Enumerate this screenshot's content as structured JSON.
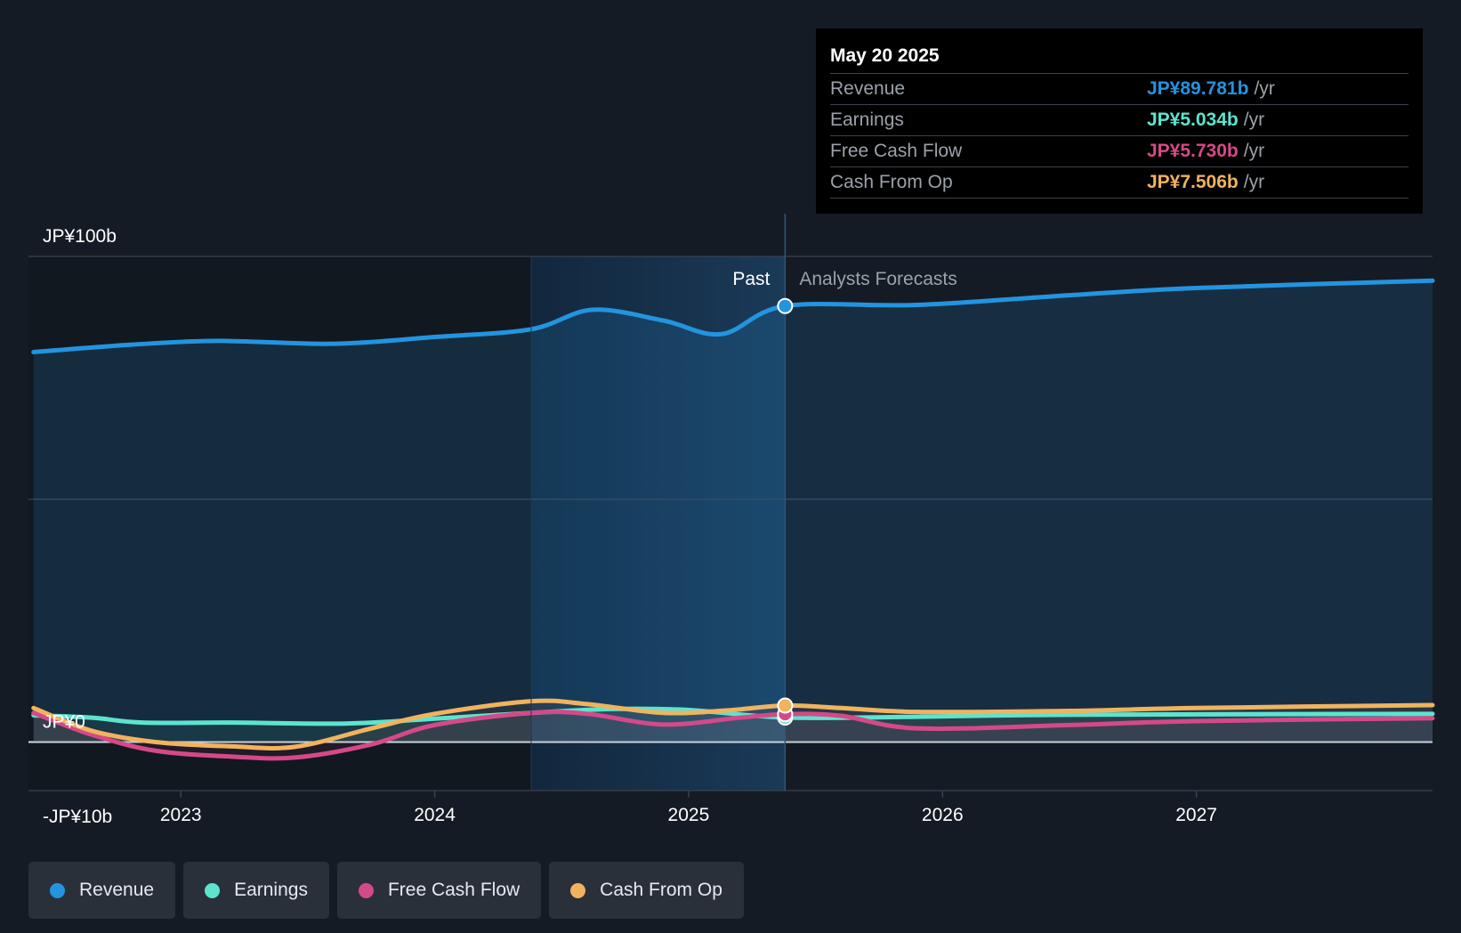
{
  "chart_data": {
    "type": "line",
    "x_label": "",
    "y_label": "",
    "ylim": [
      -10,
      100
    ],
    "y_ticks": [
      {
        "value": 100,
        "label": "JP¥100b"
      },
      {
        "value": 0,
        "label": "JP¥0"
      },
      {
        "value": -10,
        "label": "-JP¥10b"
      }
    ],
    "x_ticks": [
      2023,
      2024,
      2025,
      2026,
      2027
    ],
    "x_range": [
      2022.4,
      2027.93
    ],
    "past_label": "Past",
    "forecast_label": "Analysts Forecasts",
    "divider_x": 2025.38,
    "highlight_start_x": 2024.38,
    "series": [
      {
        "name": "Revenue",
        "color": "#2394df",
        "fill": true,
        "points": [
          [
            2022.42,
            80.3
          ],
          [
            2022.8,
            81.8
          ],
          [
            2023.15,
            82.6
          ],
          [
            2023.6,
            82.0
          ],
          [
            2024.0,
            83.4
          ],
          [
            2024.38,
            85.0
          ],
          [
            2024.62,
            89.0
          ],
          [
            2024.9,
            86.8
          ],
          [
            2025.13,
            84.0
          ],
          [
            2025.38,
            89.781
          ],
          [
            2025.9,
            90.0
          ],
          [
            2026.5,
            92.0
          ],
          [
            2027.0,
            93.5
          ],
          [
            2027.93,
            95.0
          ]
        ]
      },
      {
        "name": "Earnings",
        "color": "#5ce4cf",
        "fill": false,
        "points": [
          [
            2022.42,
            5.5
          ],
          [
            2022.65,
            5.0
          ],
          [
            2022.85,
            4.0
          ],
          [
            2023.2,
            4.0
          ],
          [
            2023.65,
            3.8
          ],
          [
            2024.0,
            4.8
          ],
          [
            2024.38,
            6.0
          ],
          [
            2024.7,
            6.8
          ],
          [
            2025.0,
            6.6
          ],
          [
            2025.38,
            5.034
          ],
          [
            2025.9,
            5.2
          ],
          [
            2026.5,
            5.6
          ],
          [
            2027.93,
            5.8
          ]
        ]
      },
      {
        "name": "Free Cash Flow",
        "color": "#d54989",
        "fill": false,
        "points": [
          [
            2022.42,
            6.0
          ],
          [
            2022.65,
            1.5
          ],
          [
            2022.9,
            -1.8
          ],
          [
            2023.2,
            -3.0
          ],
          [
            2023.45,
            -3.2
          ],
          [
            2023.75,
            -0.5
          ],
          [
            2024.0,
            3.5
          ],
          [
            2024.38,
            6.0
          ],
          [
            2024.6,
            5.8
          ],
          [
            2024.9,
            3.6
          ],
          [
            2025.2,
            5.0
          ],
          [
            2025.38,
            5.73
          ],
          [
            2025.6,
            5.4
          ],
          [
            2025.9,
            2.8
          ],
          [
            2026.5,
            3.5
          ],
          [
            2027.0,
            4.3
          ],
          [
            2027.93,
            4.9
          ]
        ]
      },
      {
        "name": "Cash From Op",
        "color": "#f0b35f",
        "fill": false,
        "points": [
          [
            2022.42,
            7.0
          ],
          [
            2022.65,
            2.3
          ],
          [
            2022.9,
            0.0
          ],
          [
            2023.2,
            -0.9
          ],
          [
            2023.45,
            -1.0
          ],
          [
            2023.75,
            2.8
          ],
          [
            2024.0,
            5.8
          ],
          [
            2024.38,
            8.4
          ],
          [
            2024.6,
            7.8
          ],
          [
            2024.9,
            6.0
          ],
          [
            2025.15,
            6.5
          ],
          [
            2025.38,
            7.506
          ],
          [
            2025.6,
            7.0
          ],
          [
            2025.9,
            6.2
          ],
          [
            2026.5,
            6.4
          ],
          [
            2027.0,
            7.0
          ],
          [
            2027.93,
            7.6
          ]
        ]
      }
    ]
  },
  "tooltip": {
    "date": "May 20 2025",
    "rows": [
      {
        "label": "Revenue",
        "value": "JP¥89.781b",
        "unit": "/yr",
        "color": "#2394df"
      },
      {
        "label": "Earnings",
        "value": "JP¥5.034b",
        "unit": "/yr",
        "color": "#5ce4cf"
      },
      {
        "label": "Free Cash Flow",
        "value": "JP¥5.730b",
        "unit": "/yr",
        "color": "#d54989"
      },
      {
        "label": "Cash From Op",
        "value": "JP¥7.506b",
        "unit": "/yr",
        "color": "#f0b35f"
      }
    ]
  },
  "legend": [
    {
      "label": "Revenue",
      "color": "#2394df"
    },
    {
      "label": "Earnings",
      "color": "#5ce4cf"
    },
    {
      "label": "Free Cash Flow",
      "color": "#d54989"
    },
    {
      "label": "Cash From Op",
      "color": "#f0b35f"
    }
  ]
}
